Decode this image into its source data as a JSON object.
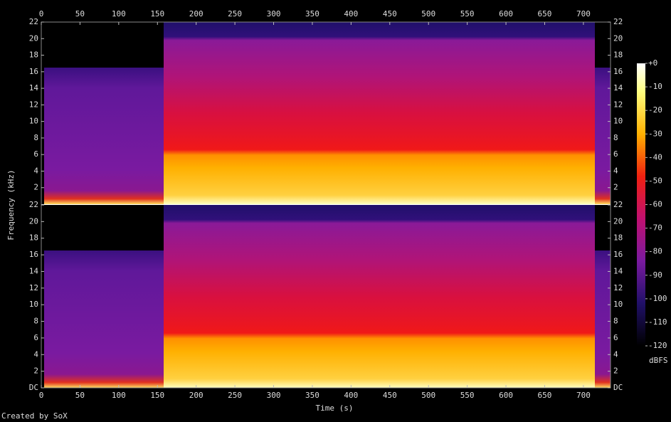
{
  "chart_data": {
    "type": "spectrogram",
    "xlabel": "Time (s)",
    "ylabel": "Frequency (kHz)",
    "colorbar_label": "dBFS",
    "credit": "Created by SoX",
    "xlim": [
      0,
      735
    ],
    "xticks": [
      0,
      50,
      100,
      150,
      200,
      250,
      300,
      350,
      400,
      450,
      500,
      550,
      600,
      650,
      700
    ],
    "ylim": [
      0,
      22
    ],
    "channels": [
      {
        "yticks": [
          2,
          4,
          6,
          8,
          10,
          12,
          14,
          16,
          18,
          20,
          22
        ]
      },
      {
        "yticks": [
          {
            "value": 0,
            "label": "DC"
          },
          2,
          4,
          6,
          8,
          10,
          12,
          14,
          16,
          18,
          20,
          22
        ]
      }
    ],
    "clim": [
      -120,
      0
    ],
    "cticks": [
      {
        "value": 0,
        "label": "+0"
      },
      -10,
      -20,
      -30,
      -40,
      -50,
      -60,
      -70,
      -80,
      -90,
      -100,
      -110,
      -120
    ]
  }
}
